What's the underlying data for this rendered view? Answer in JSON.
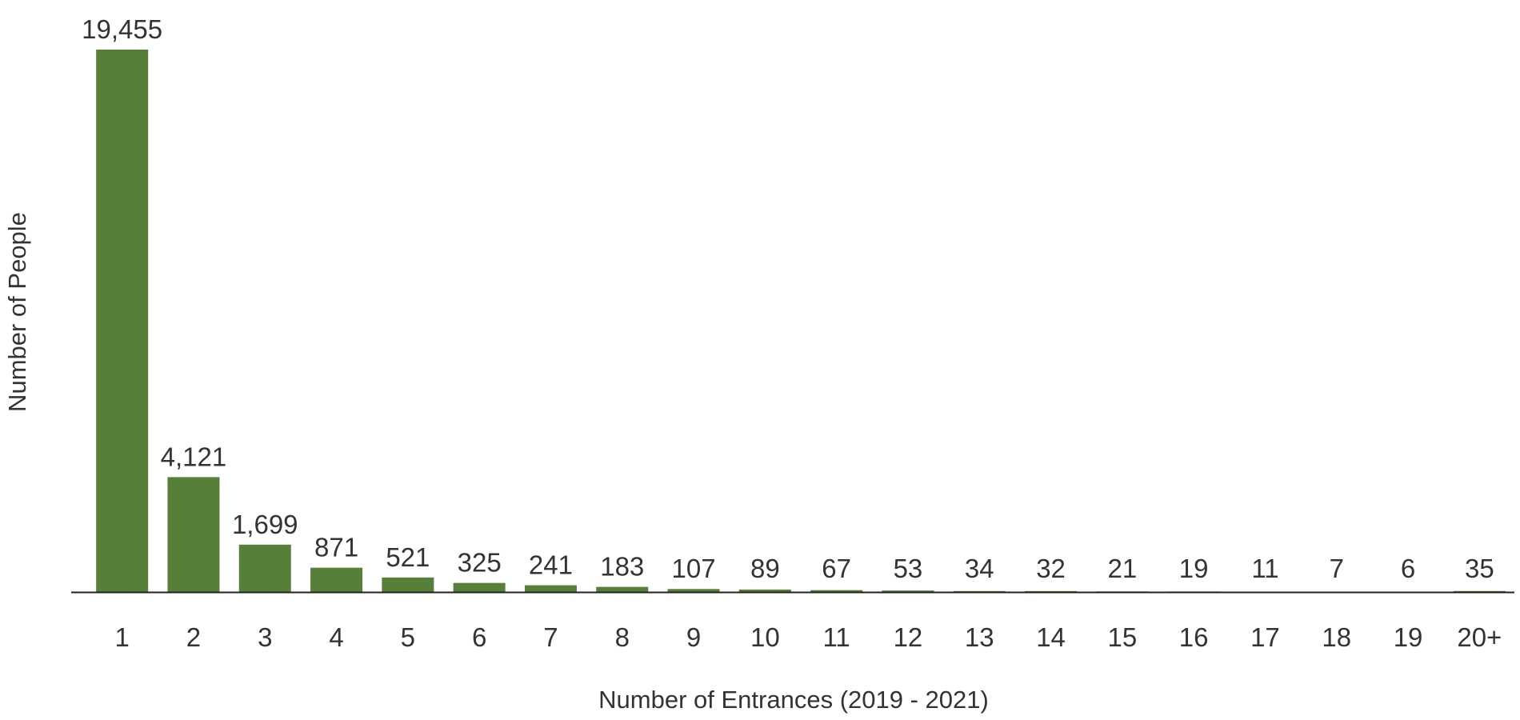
{
  "chart_data": {
    "type": "bar",
    "title": "",
    "xlabel": "Number of Entrances (2019 - 2021)",
    "ylabel": "Number of People",
    "categories": [
      "1",
      "2",
      "3",
      "4",
      "5",
      "6",
      "7",
      "8",
      "9",
      "10",
      "11",
      "12",
      "13",
      "14",
      "15",
      "16",
      "17",
      "18",
      "19",
      "20+"
    ],
    "values": [
      19455,
      4121,
      1699,
      871,
      521,
      325,
      241,
      183,
      107,
      89,
      67,
      53,
      34,
      32,
      21,
      19,
      11,
      7,
      6,
      35
    ],
    "value_labels": [
      "19,455",
      "4,121",
      "1,699",
      "871",
      "521",
      "325",
      "241",
      "183",
      "107",
      "89",
      "67",
      "53",
      "34",
      "32",
      "21",
      "19",
      "11",
      "7",
      "6",
      "35"
    ],
    "ylim": [
      0,
      19455
    ],
    "grid": false,
    "legend": "none",
    "bar_color": "#567f3a",
    "axis_color": "#222222",
    "text_color": "#333333"
  }
}
